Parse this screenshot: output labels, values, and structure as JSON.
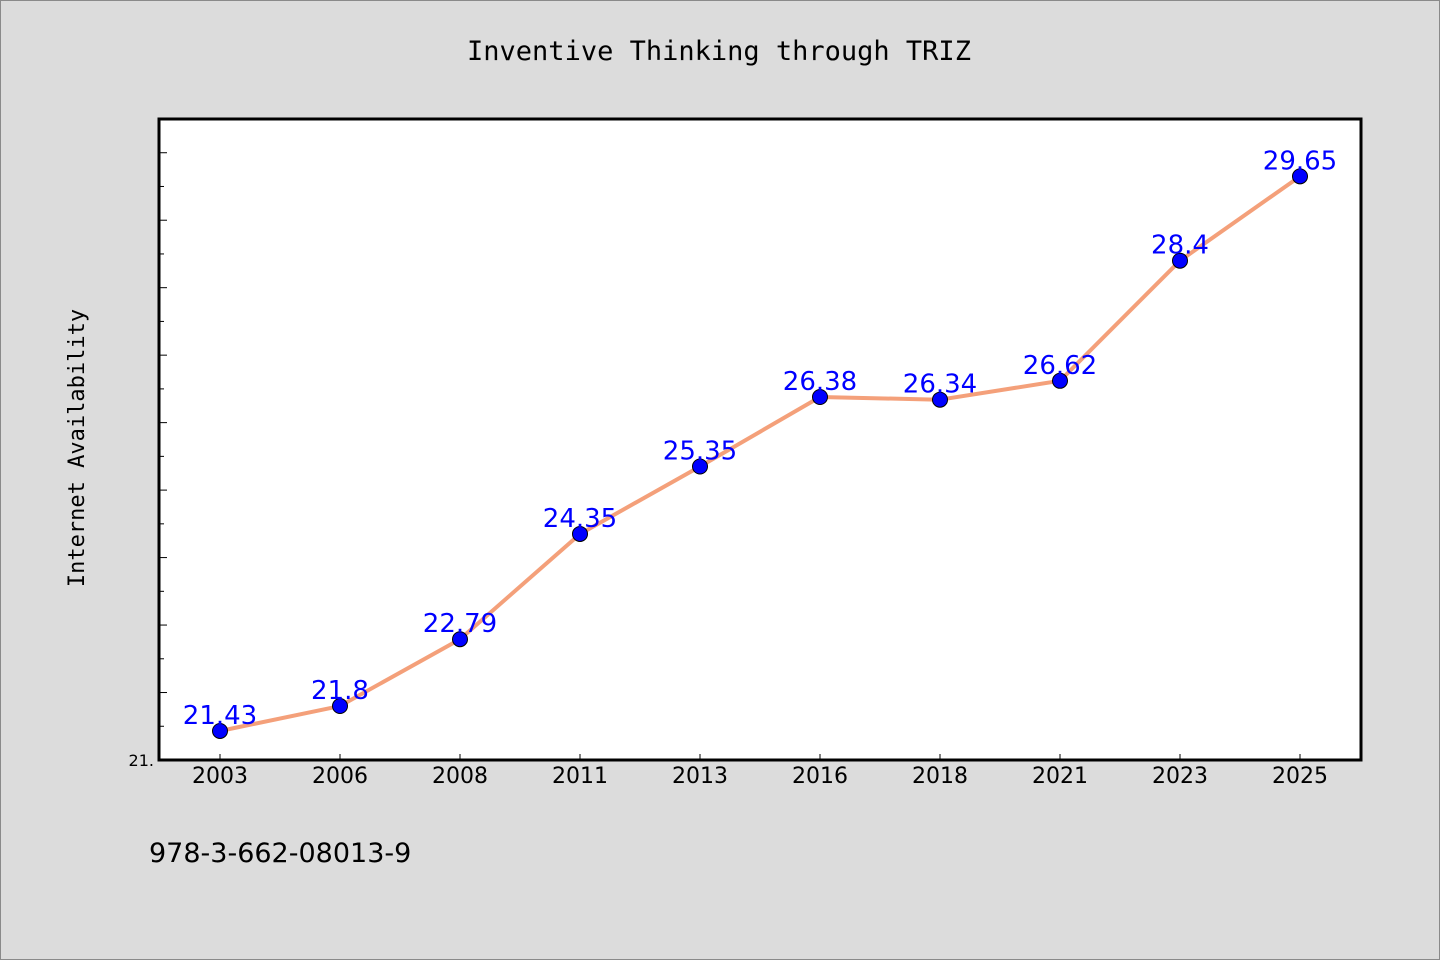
{
  "chart_data": {
    "type": "line",
    "title": "Inventive Thinking through TRIZ",
    "ylabel": "Internet Availability",
    "xlabel": "",
    "categories": [
      "2003",
      "2006",
      "2008",
      "2011",
      "2013",
      "2016",
      "2018",
      "2021",
      "2023",
      "2025"
    ],
    "series": [
      {
        "values": [
          21.43,
          21.8,
          22.79,
          24.35,
          25.35,
          26.38,
          26.34,
          26.62,
          28.4,
          29.65
        ],
        "labels": [
          "21.43",
          "21.8",
          "22.79",
          "24.35",
          "25.35",
          "26.38",
          "26.34",
          "26.62",
          "28.4",
          "29.65"
        ]
      }
    ],
    "ylim": [
      21.0,
      30.5
    ],
    "y_min_label": "21.",
    "grid": false,
    "legend": "none",
    "colors": {
      "line": "#f4a07a",
      "marker": "#0000ff",
      "data_label": "#0000ff",
      "background": "#dcdcdc",
      "plot_background": "#ffffff"
    }
  },
  "footer": {
    "isbn": "978-3-662-08013-9"
  }
}
